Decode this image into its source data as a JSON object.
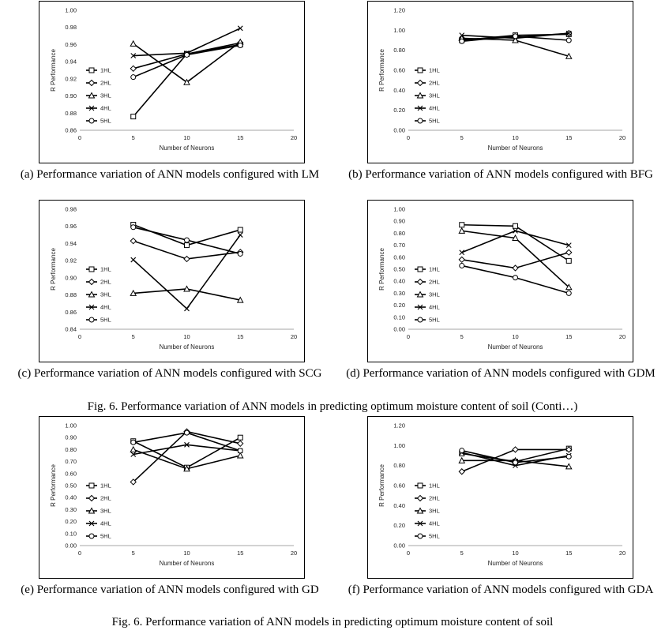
{
  "figure": {
    "caption_top": "Fig. 6. Performance variation of ANN models in predicting optimum moisture content of soil (Conti…)",
    "caption_bottom": "Fig. 6. Performance variation of ANN models in predicting optimum moisture content of soil"
  },
  "captions": [
    "(a) Performance variation of ANN models configured with LM",
    "(b) Performance variation of ANN models configured with BFG",
    "(c) Performance variation of ANN models configured with SCG",
    "(d) Performance variation of ANN models configured with GDM",
    "(e) Performance variation of ANN models configured with GD",
    "(f) Performance variation of ANN models configured with GDA"
  ],
  "chart_data": [
    {
      "type": "line",
      "xlabel": "Number of Neurons",
      "ylabel": "R Performance",
      "xlim": [
        0,
        20
      ],
      "xticks": [
        0,
        5,
        10,
        15,
        20
      ],
      "ylim": [
        0.86,
        1.0
      ],
      "yticks": [
        0.86,
        0.88,
        0.9,
        0.92,
        0.94,
        0.96,
        0.98,
        1.0
      ],
      "ydecimals": 2,
      "x": [
        5,
        10,
        15
      ],
      "series": [
        {
          "name": "1HL",
          "marker": "square",
          "values": [
            0.876,
            0.949,
            0.96
          ]
        },
        {
          "name": "2HL",
          "marker": "diamond",
          "values": [
            0.932,
            0.949,
            0.962
          ]
        },
        {
          "name": "3HL",
          "marker": "triangle",
          "values": [
            0.961,
            0.916,
            0.963
          ]
        },
        {
          "name": "4HL",
          "marker": "x",
          "values": [
            0.947,
            0.95,
            0.979
          ]
        },
        {
          "name": "5HL",
          "marker": "circle",
          "values": [
            0.922,
            0.948,
            0.959
          ]
        }
      ],
      "legend": "left"
    },
    {
      "type": "line",
      "xlabel": "Number of Neurons",
      "ylabel": "R Performance",
      "xlim": [
        0,
        20
      ],
      "xticks": [
        0,
        5,
        10,
        15,
        20
      ],
      "ylim": [
        0,
        1.2
      ],
      "yticks": [
        0,
        0.2,
        0.4,
        0.6,
        0.8,
        1.0,
        1.2
      ],
      "ydecimals": 2,
      "x": [
        5,
        10,
        15
      ],
      "series": [
        {
          "name": "1HL",
          "marker": "square",
          "values": [
            0.9,
            0.95,
            0.96
          ]
        },
        {
          "name": "2HL",
          "marker": "diamond",
          "values": [
            0.91,
            0.93,
            0.97
          ]
        },
        {
          "name": "3HL",
          "marker": "triangle",
          "values": [
            0.92,
            0.9,
            0.74
          ]
        },
        {
          "name": "4HL",
          "marker": "x",
          "values": [
            0.95,
            0.92,
            0.97
          ]
        },
        {
          "name": "5HL",
          "marker": "circle",
          "values": [
            0.89,
            0.94,
            0.9
          ]
        }
      ],
      "legend": "left"
    },
    {
      "type": "line",
      "xlabel": "Number of Neurons",
      "ylabel": "R Performance",
      "xlim": [
        0,
        20
      ],
      "xticks": [
        0,
        5,
        10,
        15,
        20
      ],
      "ylim": [
        0.84,
        0.98
      ],
      "yticks": [
        0.84,
        0.86,
        0.88,
        0.9,
        0.92,
        0.94,
        0.96,
        0.98
      ],
      "ydecimals": 2,
      "x": [
        5,
        10,
        15
      ],
      "series": [
        {
          "name": "1HL",
          "marker": "square",
          "values": [
            0.962,
            0.938,
            0.956
          ]
        },
        {
          "name": "2HL",
          "marker": "diamond",
          "values": [
            0.943,
            0.922,
            0.93
          ]
        },
        {
          "name": "3HL",
          "marker": "triangle",
          "values": [
            0.882,
            0.887,
            0.874
          ]
        },
        {
          "name": "4HL",
          "marker": "x",
          "values": [
            0.921,
            0.864,
            0.95
          ]
        },
        {
          "name": "5HL",
          "marker": "circle",
          "values": [
            0.959,
            0.944,
            0.928
          ]
        }
      ],
      "legend": "left"
    },
    {
      "type": "line",
      "xlabel": "Number of Neurons",
      "ylabel": "R Performance",
      "xlim": [
        0,
        20
      ],
      "xticks": [
        0,
        5,
        10,
        15,
        20
      ],
      "ylim": [
        0,
        1.0
      ],
      "yticks": [
        0,
        0.1,
        0.2,
        0.3,
        0.4,
        0.5,
        0.6,
        0.7,
        0.8,
        0.9,
        1.0
      ],
      "ydecimals": 2,
      "x": [
        5,
        10,
        15
      ],
      "series": [
        {
          "name": "1HL",
          "marker": "square",
          "values": [
            0.87,
            0.86,
            0.57
          ]
        },
        {
          "name": "2HL",
          "marker": "diamond",
          "values": [
            0.58,
            0.51,
            0.64
          ]
        },
        {
          "name": "3HL",
          "marker": "triangle",
          "values": [
            0.82,
            0.76,
            0.35
          ]
        },
        {
          "name": "4HL",
          "marker": "x",
          "values": [
            0.64,
            0.82,
            0.7
          ]
        },
        {
          "name": "5HL",
          "marker": "circle",
          "values": [
            0.53,
            0.43,
            0.3
          ]
        }
      ],
      "legend": "left"
    },
    {
      "type": "line",
      "xlabel": "Number of Neurons",
      "ylabel": "R Performance",
      "xlim": [
        0,
        20
      ],
      "xticks": [
        0,
        5,
        10,
        15,
        20
      ],
      "ylim": [
        0,
        1.0
      ],
      "yticks": [
        0,
        0.1,
        0.2,
        0.3,
        0.4,
        0.5,
        0.6,
        0.7,
        0.8,
        0.9,
        1.0
      ],
      "ydecimals": 2,
      "x": [
        5,
        10,
        15
      ],
      "series": [
        {
          "name": "1HL",
          "marker": "square",
          "values": [
            0.87,
            0.65,
            0.9
          ]
        },
        {
          "name": "2HL",
          "marker": "diamond",
          "values": [
            0.53,
            0.95,
            0.85
          ]
        },
        {
          "name": "3HL",
          "marker": "triangle",
          "values": [
            0.8,
            0.64,
            0.75
          ]
        },
        {
          "name": "4HL",
          "marker": "x",
          "values": [
            0.76,
            0.84,
            0.79
          ]
        },
        {
          "name": "5HL",
          "marker": "circle",
          "values": [
            0.86,
            0.94,
            0.79
          ]
        }
      ],
      "legend": "left"
    },
    {
      "type": "line",
      "xlabel": "Number of Neurons",
      "ylabel": "R Performance",
      "xlim": [
        0,
        20
      ],
      "xticks": [
        0,
        5,
        10,
        15,
        20
      ],
      "ylim": [
        0,
        1.2
      ],
      "yticks": [
        0,
        0.2,
        0.4,
        0.6,
        0.8,
        1.0,
        1.2
      ],
      "ydecimals": 2,
      "x": [
        5,
        10,
        15
      ],
      "series": [
        {
          "name": "1HL",
          "marker": "square",
          "values": [
            0.92,
            0.84,
            0.97
          ]
        },
        {
          "name": "2HL",
          "marker": "diamond",
          "values": [
            0.74,
            0.96,
            0.96
          ]
        },
        {
          "name": "3HL",
          "marker": "triangle",
          "values": [
            0.85,
            0.85,
            0.79
          ]
        },
        {
          "name": "4HL",
          "marker": "x",
          "values": [
            0.93,
            0.8,
            0.9
          ]
        },
        {
          "name": "5HL",
          "marker": "circle",
          "values": [
            0.95,
            0.83,
            0.89
          ]
        }
      ],
      "legend": "left"
    }
  ]
}
